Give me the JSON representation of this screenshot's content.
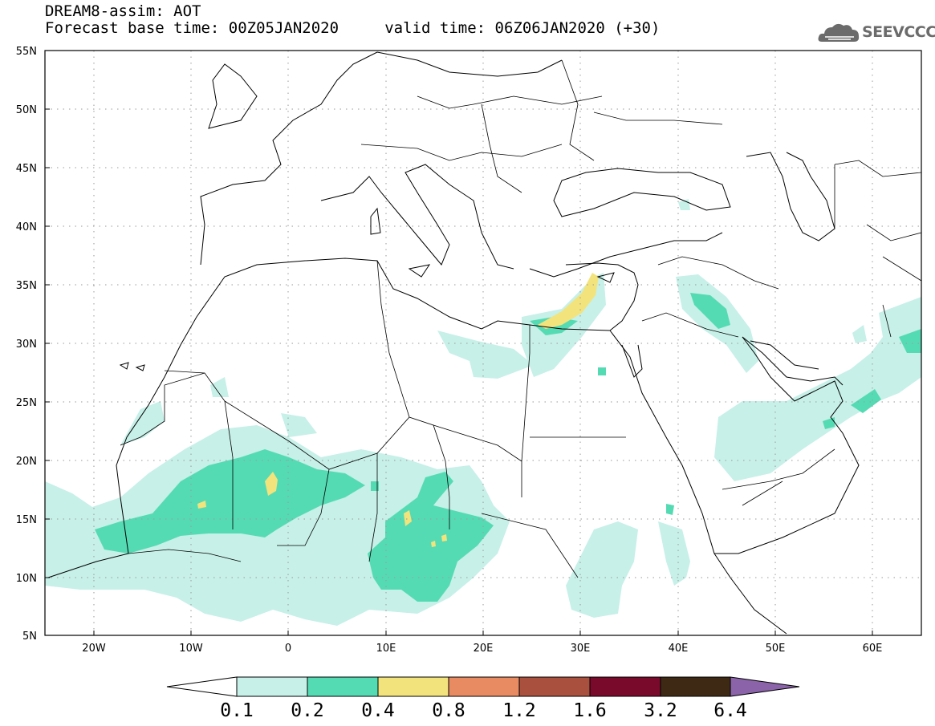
{
  "header": {
    "line1": "DREAM8-assim: AOT",
    "line2": "Forecast base time: 00Z05JAN2020     valid time: 06Z06JAN2020 (+30)"
  },
  "logo": {
    "text": "SEEVCCC",
    "icon": "cloud-logo-icon"
  },
  "map": {
    "lon_range": [
      -25,
      65
    ],
    "lat_range": [
      5,
      55
    ],
    "lat_ticks": [
      "55N",
      "50N",
      "45N",
      "40N",
      "35N",
      "30N",
      "25N",
      "20N",
      "15N",
      "10N",
      "5N"
    ],
    "lon_ticks": [
      "20W",
      "10W",
      "0",
      "10E",
      "20E",
      "30E",
      "40E",
      "50E",
      "60E"
    ],
    "grid": "dotted"
  },
  "colorbar": {
    "labels": [
      "0.1",
      "0.2",
      "0.4",
      "0.8",
      "1.2",
      "1.6",
      "3.2",
      "6.4"
    ],
    "colors": [
      "#ffffff",
      "#c7f0e8",
      "#55dbb4",
      "#f3e37c",
      "#e98b62",
      "#a9503e",
      "#7a0a2c",
      "#3e2a14",
      "#8a63a8"
    ]
  }
}
